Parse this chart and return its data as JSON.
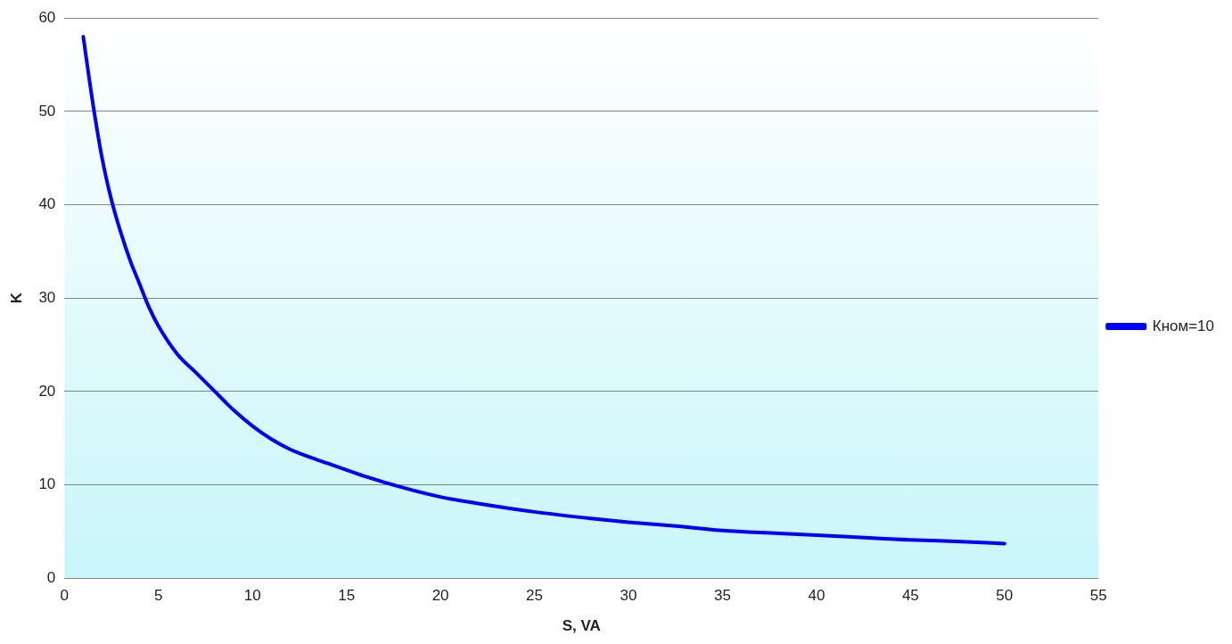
{
  "chart_data": {
    "type": "line",
    "xlabel": "S, VA",
    "ylabel": "K",
    "xlim": [
      0,
      55
    ],
    "xticks": [
      0,
      5,
      10,
      15,
      20,
      25,
      30,
      35,
      40,
      45,
      50,
      55
    ],
    "ylim": [
      0,
      60
    ],
    "yticks": [
      0,
      10,
      20,
      30,
      40,
      50,
      60
    ],
    "grid": "y",
    "legend": "right",
    "marker": "none",
    "line_style": "solid",
    "series": [
      {
        "name": "Кном=10",
        "color": "#0000ff",
        "x": [
          1,
          1.5,
          2,
          2.5,
          3,
          3.5,
          4,
          4.5,
          5,
          6,
          7,
          8,
          9,
          10,
          11,
          12,
          13,
          14,
          15,
          16,
          18,
          20,
          22,
          25,
          28,
          30,
          33,
          35,
          38,
          40,
          43,
          45,
          48,
          50
        ],
        "values": [
          58,
          51,
          45,
          40.5,
          37,
          34,
          31.5,
          29,
          27,
          24,
          22,
          20,
          18,
          16.3,
          14.9,
          13.8,
          13,
          12.3,
          11.6,
          10.9,
          9.7,
          8.7,
          8,
          7.1,
          6.4,
          6,
          5.5,
          5.1,
          4.8,
          4.6,
          4.3,
          4.1,
          3.9,
          3.7
        ]
      }
    ]
  }
}
